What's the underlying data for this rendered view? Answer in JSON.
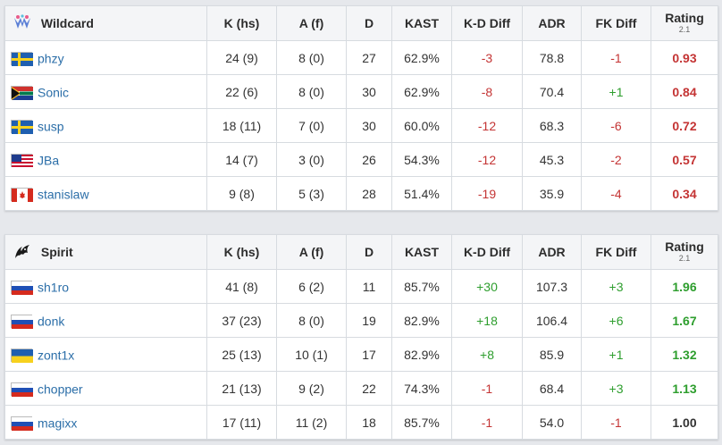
{
  "columns": [
    "K (hs)",
    "A (f)",
    "D",
    "KAST",
    "K-D Diff",
    "ADR",
    "FK Diff",
    "Rating"
  ],
  "rating_version": "2.1",
  "teams": [
    {
      "name": "Wildcard",
      "logo_icon": "wildcard-logo-icon",
      "players": [
        {
          "name": "phzy",
          "flag": "sweden",
          "k_hs": "24 (9)",
          "a_f": "8 (0)",
          "d": "27",
          "kast": "62.9%",
          "kd_diff": "-3",
          "kd_sign": "neg",
          "adr": "78.8",
          "fk_diff": "-1",
          "fk_sign": "neg",
          "rating": "0.93",
          "rating_sign": "neg"
        },
        {
          "name": "Sonic",
          "flag": "south-africa",
          "k_hs": "22 (6)",
          "a_f": "8 (0)",
          "d": "30",
          "kast": "62.9%",
          "kd_diff": "-8",
          "kd_sign": "neg",
          "adr": "70.4",
          "fk_diff": "+1",
          "fk_sign": "pos",
          "rating": "0.84",
          "rating_sign": "neg"
        },
        {
          "name": "susp",
          "flag": "sweden",
          "k_hs": "18 (11)",
          "a_f": "7 (0)",
          "d": "30",
          "kast": "60.0%",
          "kd_diff": "-12",
          "kd_sign": "neg",
          "adr": "68.3",
          "fk_diff": "-6",
          "fk_sign": "neg",
          "rating": "0.72",
          "rating_sign": "neg"
        },
        {
          "name": "JBa",
          "flag": "usa",
          "k_hs": "14 (7)",
          "a_f": "3 (0)",
          "d": "26",
          "kast": "54.3%",
          "kd_diff": "-12",
          "kd_sign": "neg",
          "adr": "45.3",
          "fk_diff": "-2",
          "fk_sign": "neg",
          "rating": "0.57",
          "rating_sign": "neg"
        },
        {
          "name": "stanislaw",
          "flag": "canada",
          "k_hs": "9 (8)",
          "a_f": "5 (3)",
          "d": "28",
          "kast": "51.4%",
          "kd_diff": "-19",
          "kd_sign": "neg",
          "adr": "35.9",
          "fk_diff": "-4",
          "fk_sign": "neg",
          "rating": "0.34",
          "rating_sign": "neg"
        }
      ]
    },
    {
      "name": "Spirit",
      "logo_icon": "spirit-logo-icon",
      "players": [
        {
          "name": "sh1ro",
          "flag": "russia",
          "k_hs": "41 (8)",
          "a_f": "6 (2)",
          "d": "11",
          "kast": "85.7%",
          "kd_diff": "+30",
          "kd_sign": "pos",
          "adr": "107.3",
          "fk_diff": "+3",
          "fk_sign": "pos",
          "rating": "1.96",
          "rating_sign": "pos"
        },
        {
          "name": "donk",
          "flag": "russia",
          "k_hs": "37 (23)",
          "a_f": "8 (0)",
          "d": "19",
          "kast": "82.9%",
          "kd_diff": "+18",
          "kd_sign": "pos",
          "adr": "106.4",
          "fk_diff": "+6",
          "fk_sign": "pos",
          "rating": "1.67",
          "rating_sign": "pos"
        },
        {
          "name": "zont1x",
          "flag": "ukraine",
          "k_hs": "25 (13)",
          "a_f": "10 (1)",
          "d": "17",
          "kast": "82.9%",
          "kd_diff": "+8",
          "kd_sign": "pos",
          "adr": "85.9",
          "fk_diff": "+1",
          "fk_sign": "pos",
          "rating": "1.32",
          "rating_sign": "pos"
        },
        {
          "name": "chopper",
          "flag": "russia",
          "k_hs": "21 (13)",
          "a_f": "9 (2)",
          "d": "22",
          "kast": "74.3%",
          "kd_diff": "-1",
          "kd_sign": "neg",
          "adr": "68.4",
          "fk_diff": "+3",
          "fk_sign": "pos",
          "rating": "1.13",
          "rating_sign": "pos"
        },
        {
          "name": "magixx",
          "flag": "russia",
          "k_hs": "17 (11)",
          "a_f": "11 (2)",
          "d": "18",
          "kast": "85.7%",
          "kd_diff": "-1",
          "kd_sign": "neg",
          "adr": "54.0",
          "fk_diff": "-1",
          "fk_sign": "neg",
          "rating": "1.00",
          "rating_sign": "neu"
        }
      ]
    }
  ],
  "colors": {
    "negative": "#c43434",
    "positive": "#2e9e2e",
    "link": "#2b6ea8"
  }
}
